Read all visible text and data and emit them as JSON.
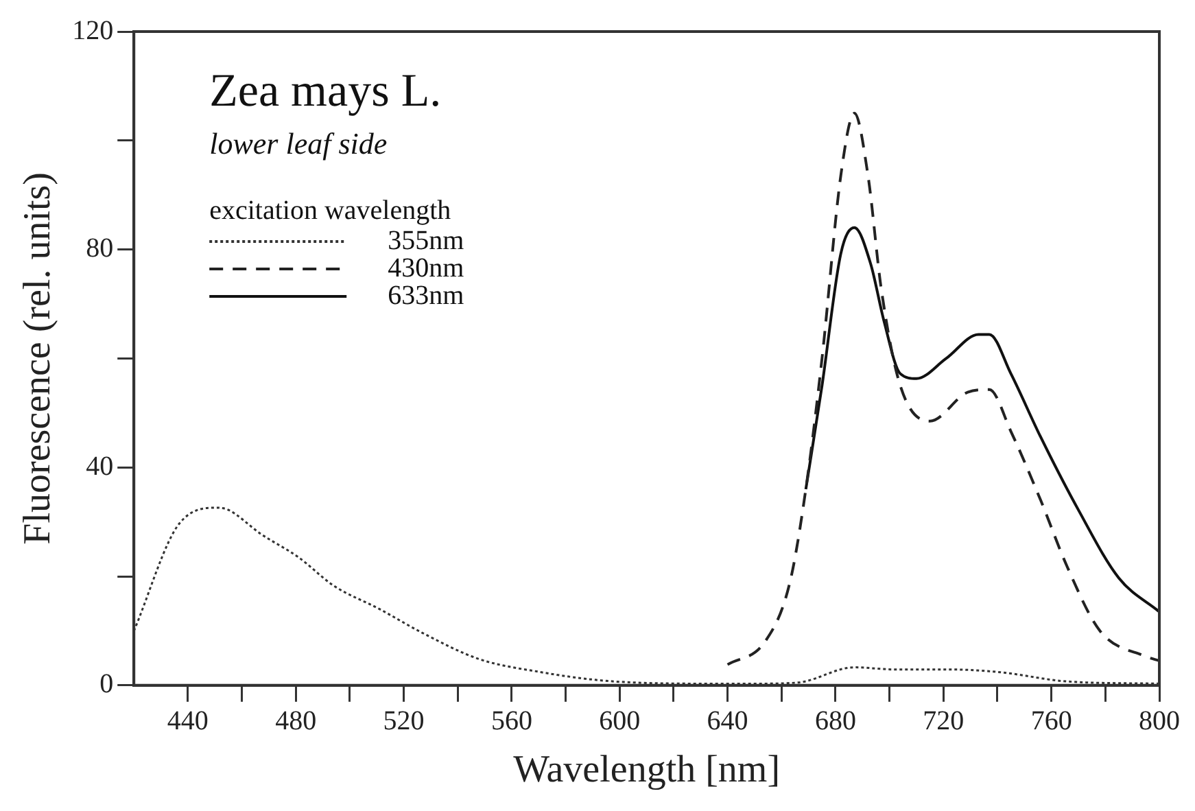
{
  "chart_data": {
    "type": "line",
    "title": "Zea mays L.",
    "subtitle": "lower leaf side",
    "legend_title": "excitation wavelength",
    "xlabel": "Wavelength [nm]",
    "ylabel": "Fluorescence (rel. units)",
    "xlim": [
      420,
      800
    ],
    "ylim": [
      0,
      120
    ],
    "xticks": [
      440,
      {
        "value": 460,
        "label": null
      },
      480,
      {
        "value": 500,
        "label": null
      },
      520,
      {
        "value": 540,
        "label": null
      },
      560,
      {
        "value": 580,
        "label": null
      },
      600,
      {
        "value": 620,
        "label": null
      },
      640,
      {
        "value": 660,
        "label": null
      },
      680,
      {
        "value": 700,
        "label": null
      },
      720,
      {
        "value": 740,
        "label": null
      },
      760,
      {
        "value": 780,
        "label": null
      },
      800
    ],
    "yticks": [
      0,
      {
        "value": 20,
        "label": null
      },
      40,
      {
        "value": 60,
        "label": null
      },
      80,
      {
        "value": 100,
        "label": null
      },
      120
    ],
    "grid": false,
    "legend": "top left",
    "marker": "none",
    "series": [
      {
        "name": "355nm",
        "color": "#333333",
        "line_style": "dotted",
        "x": [
          420,
          437,
          451,
          455,
          467,
          481,
          494,
          511,
          527,
          548,
          571,
          591,
          606,
          630,
          650,
          666,
          687,
          702,
          723,
          741,
          766,
          800
        ],
        "values": [
          10,
          29.8,
          32.6,
          32.2,
          27.8,
          23.5,
          18.3,
          14,
          9.6,
          4.8,
          2.4,
          1,
          0.5,
          0.3,
          0.3,
          0.5,
          3.3,
          2.9,
          2.9,
          2.4,
          0.7,
          0.3
        ]
      },
      {
        "name": "430nm",
        "color": "#222222",
        "line_style": "dashed",
        "x": [
          640,
          654,
          663,
          669,
          675,
          682,
          687,
          692,
          697,
          704,
          715,
          729,
          737,
          745,
          756,
          766,
          778,
          795,
          800
        ],
        "values": [
          3.8,
          8.1,
          18.7,
          36,
          60,
          93.7,
          105,
          93.7,
          72.6,
          55,
          48.5,
          53.8,
          54.3,
          46.6,
          34,
          21.6,
          10,
          5.3,
          4.5
        ]
      },
      {
        "name": "633nm",
        "color": "#111111",
        "line_style": "solid",
        "x": [
          669,
          675,
          682,
          687,
          693,
          698,
          704,
          710,
          721,
          733,
          737,
          745,
          756,
          770,
          785,
          800
        ],
        "values": [
          36,
          55,
          79.3,
          84,
          77.4,
          66.8,
          57.2,
          56.3,
          60,
          64.4,
          64.4,
          57.2,
          45.6,
          32.2,
          19.7,
          13.5
        ]
      }
    ]
  }
}
